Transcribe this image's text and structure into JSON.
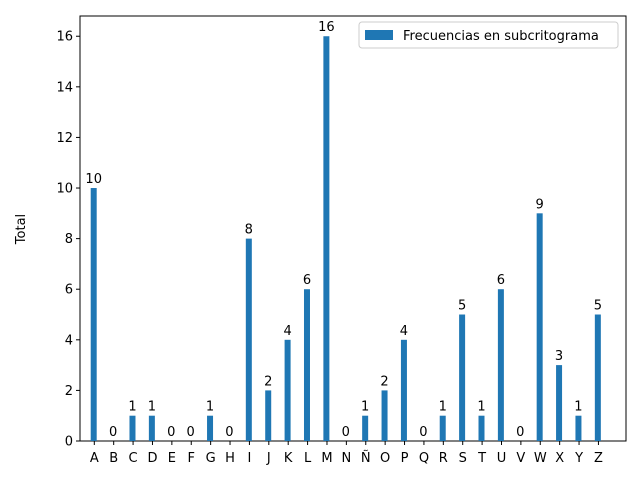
{
  "chart_data": {
    "type": "bar",
    "ylabel": "Total",
    "xlabel": "",
    "title": "",
    "ylim": [
      0,
      16.8
    ],
    "yticks": [
      0,
      2,
      4,
      6,
      8,
      10,
      12,
      14,
      16
    ],
    "categories": [
      "A",
      "B",
      "C",
      "D",
      "E",
      "F",
      "G",
      "H",
      "I",
      "J",
      "K",
      "L",
      "M",
      "N",
      "Ñ",
      "O",
      "P",
      "Q",
      "R",
      "S",
      "T",
      "U",
      "V",
      "W",
      "X",
      "Y",
      "Z"
    ],
    "series": [
      {
        "name": "Frecuencias en subcritograma",
        "color": "#1f77b4",
        "values": [
          10,
          0,
          1,
          1,
          0,
          0,
          1,
          0,
          8,
          2,
          4,
          6,
          16,
          0,
          1,
          2,
          4,
          0,
          1,
          5,
          1,
          6,
          0,
          9,
          3,
          1,
          5
        ],
        "labels": [
          "10",
          "0",
          "1",
          "1",
          "0",
          "0",
          "1",
          "0",
          "8",
          "2",
          "4",
          "6",
          "16",
          "0",
          "1",
          "2",
          "4",
          "0",
          "1",
          "5",
          "1",
          "6",
          "0",
          "9",
          "3",
          "1",
          "5"
        ]
      }
    ],
    "legend_position": "top-right",
    "grid": false
  }
}
